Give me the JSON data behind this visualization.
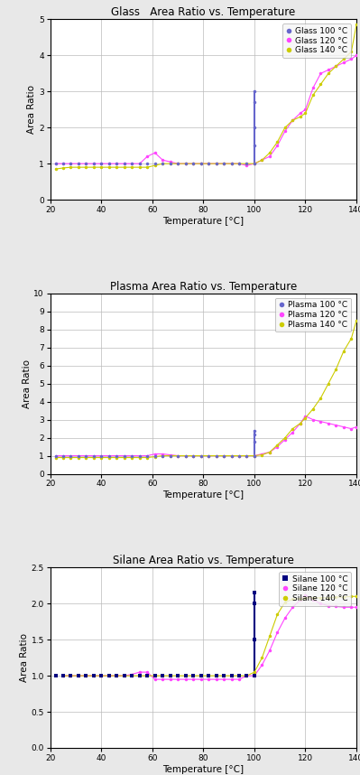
{
  "charts": [
    {
      "title": "Glass   Area Ratio vs. Temperature",
      "xlabel": "Temperature [°C]",
      "ylabel": "Area Ratio",
      "ylim": [
        0,
        5
      ],
      "yticks": [
        0,
        1,
        2,
        3,
        4,
        5
      ],
      "xlim": [
        20,
        140
      ],
      "xticks": [
        20,
        40,
        60,
        80,
        100,
        120,
        140
      ],
      "series": [
        {
          "label": "Glass 100 °C",
          "color": "#6666cc",
          "marker": "o",
          "markersize": 2.5,
          "x": [
            22,
            25,
            28,
            31,
            34,
            37,
            40,
            43,
            46,
            49,
            52,
            55,
            58,
            61,
            64,
            67,
            70,
            73,
            76,
            79,
            82,
            85,
            88,
            91,
            94,
            97,
            100,
            100,
            100,
            100,
            100
          ],
          "y": [
            1.0,
            1.0,
            1.0,
            1.0,
            1.0,
            1.0,
            1.0,
            1.0,
            1.0,
            1.0,
            1.0,
            1.0,
            1.0,
            1.0,
            1.0,
            1.0,
            1.0,
            1.0,
            1.0,
            1.0,
            1.0,
            1.0,
            1.0,
            1.0,
            1.0,
            1.0,
            1.0,
            1.5,
            2.0,
            2.7,
            3.0
          ],
          "linestyle": "none",
          "vline_x": 100,
          "vline_y": [
            1.0,
            3.0
          ]
        },
        {
          "label": "Glass 120 °C",
          "color": "#ff44ff",
          "marker": "o",
          "markersize": 2.5,
          "x": [
            22,
            25,
            28,
            31,
            34,
            37,
            40,
            43,
            46,
            49,
            52,
            55,
            58,
            61,
            64,
            67,
            70,
            73,
            76,
            79,
            82,
            85,
            88,
            91,
            94,
            97,
            100,
            103,
            106,
            109,
            112,
            115,
            118,
            120,
            123,
            126,
            129,
            132,
            135,
            138,
            140
          ],
          "y": [
            1.0,
            1.0,
            1.0,
            1.0,
            1.0,
            1.0,
            1.0,
            1.0,
            1.0,
            1.0,
            1.0,
            1.0,
            1.2,
            1.3,
            1.1,
            1.05,
            1.0,
            1.0,
            1.0,
            1.0,
            1.0,
            1.0,
            1.0,
            1.0,
            1.0,
            0.95,
            1.0,
            1.1,
            1.2,
            1.5,
            1.9,
            2.2,
            2.4,
            2.5,
            3.1,
            3.5,
            3.6,
            3.7,
            3.8,
            3.9,
            4.0
          ],
          "linestyle": "-"
        },
        {
          "label": "Glass 140 °C",
          "color": "#cccc00",
          "marker": "o",
          "markersize": 2.5,
          "x": [
            22,
            25,
            28,
            31,
            34,
            37,
            40,
            43,
            46,
            49,
            52,
            55,
            58,
            61,
            64,
            67,
            70,
            73,
            76,
            79,
            82,
            85,
            88,
            91,
            94,
            97,
            100,
            103,
            106,
            109,
            112,
            115,
            118,
            120,
            123,
            126,
            129,
            132,
            135,
            138,
            140
          ],
          "y": [
            0.85,
            0.88,
            0.9,
            0.9,
            0.9,
            0.9,
            0.9,
            0.9,
            0.9,
            0.9,
            0.9,
            0.9,
            0.9,
            0.95,
            1.0,
            1.0,
            1.0,
            1.0,
            1.0,
            1.0,
            1.0,
            1.0,
            1.0,
            1.0,
            1.0,
            1.0,
            1.0,
            1.1,
            1.3,
            1.6,
            2.0,
            2.2,
            2.3,
            2.4,
            2.9,
            3.2,
            3.5,
            3.7,
            3.9,
            4.1,
            4.85
          ],
          "linestyle": "-"
        }
      ],
      "legend_entries": [
        "Glass 100 °C",
        "Glass 120 °C",
        "Glass 140 °C"
      ],
      "legend_colors": [
        "#6666cc",
        "#ff44ff",
        "#cccc00"
      ],
      "legend_markers": [
        "o",
        "o",
        "o"
      ]
    },
    {
      "title": "Plasma Area Ratio vs. Temperature",
      "xlabel": "Temperature [°C]",
      "ylabel": "Area Ratio",
      "ylim": [
        0,
        10
      ],
      "yticks": [
        0,
        1,
        2,
        3,
        4,
        5,
        6,
        7,
        8,
        9,
        10
      ],
      "xlim": [
        20,
        140
      ],
      "xticks": [
        20,
        40,
        60,
        80,
        100,
        120,
        140
      ],
      "series": [
        {
          "label": "Plasma 100 °C",
          "color": "#6666cc",
          "marker": "o",
          "markersize": 2.5,
          "x": [
            22,
            25,
            28,
            31,
            34,
            37,
            40,
            43,
            46,
            49,
            52,
            55,
            58,
            61,
            64,
            67,
            70,
            73,
            76,
            79,
            82,
            85,
            88,
            91,
            94,
            97,
            100,
            100,
            100,
            100
          ],
          "y": [
            1.0,
            1.0,
            1.0,
            1.0,
            1.0,
            1.0,
            1.0,
            1.0,
            1.0,
            1.0,
            1.0,
            1.0,
            1.0,
            1.0,
            1.0,
            1.0,
            1.0,
            1.0,
            1.0,
            1.0,
            1.0,
            1.0,
            1.0,
            1.0,
            1.0,
            1.0,
            1.0,
            1.8,
            2.2,
            2.4
          ],
          "linestyle": "none",
          "vline_x": 100,
          "vline_y": [
            1.0,
            2.4
          ]
        },
        {
          "label": "Plasma 120 °C",
          "color": "#ff44ff",
          "marker": "o",
          "markersize": 2.5,
          "x": [
            22,
            25,
            28,
            31,
            34,
            37,
            40,
            43,
            46,
            49,
            52,
            55,
            58,
            61,
            64,
            67,
            70,
            73,
            76,
            79,
            82,
            85,
            88,
            91,
            94,
            97,
            100,
            103,
            106,
            109,
            112,
            115,
            118,
            120,
            123,
            126,
            129,
            132,
            135,
            138,
            140
          ],
          "y": [
            1.0,
            1.0,
            1.0,
            1.0,
            1.0,
            1.0,
            1.0,
            1.0,
            1.0,
            1.0,
            1.0,
            1.0,
            1.0,
            1.1,
            1.1,
            1.05,
            1.0,
            1.0,
            1.0,
            1.0,
            1.0,
            1.0,
            1.0,
            1.0,
            1.0,
            1.0,
            1.0,
            1.1,
            1.2,
            1.5,
            1.9,
            2.3,
            2.8,
            3.2,
            3.0,
            2.9,
            2.8,
            2.7,
            2.6,
            2.5,
            2.6
          ],
          "linestyle": "-"
        },
        {
          "label": "Plasma 140 °C",
          "color": "#cccc00",
          "marker": "o",
          "markersize": 2.5,
          "x": [
            22,
            25,
            28,
            31,
            34,
            37,
            40,
            43,
            46,
            49,
            52,
            55,
            58,
            61,
            64,
            67,
            70,
            73,
            76,
            79,
            82,
            85,
            88,
            91,
            94,
            97,
            100,
            103,
            106,
            109,
            112,
            115,
            118,
            120,
            123,
            126,
            129,
            132,
            135,
            138,
            140
          ],
          "y": [
            0.9,
            0.9,
            0.9,
            0.9,
            0.9,
            0.9,
            0.9,
            0.9,
            0.9,
            0.9,
            0.9,
            0.9,
            0.9,
            0.95,
            1.0,
            1.0,
            1.0,
            1.0,
            1.0,
            1.0,
            1.0,
            1.0,
            1.0,
            1.0,
            1.0,
            1.0,
            1.0,
            1.05,
            1.2,
            1.6,
            2.0,
            2.5,
            2.8,
            3.1,
            3.6,
            4.2,
            5.0,
            5.8,
            6.8,
            7.5,
            8.5
          ],
          "linestyle": "-"
        }
      ],
      "legend_entries": [
        "Plasma 100 °C",
        "Plasma 120 °C",
        "Plasma 140 °C"
      ],
      "legend_colors": [
        "#6666cc",
        "#ff44ff",
        "#cccc00"
      ],
      "legend_markers": [
        "o",
        "o",
        "o"
      ]
    },
    {
      "title": "Silane Area Ratio vs. Temperature",
      "xlabel": "Temperature [°C]",
      "ylabel": "Area Ratio",
      "ylim": [
        0,
        2.5
      ],
      "yticks": [
        0,
        0.5,
        1.0,
        1.5,
        2.0,
        2.5
      ],
      "xlim": [
        20,
        140
      ],
      "xticks": [
        20,
        40,
        60,
        80,
        100,
        120,
        140
      ],
      "series": [
        {
          "label": "Silane 100 °C",
          "color": "#000080",
          "marker": "s",
          "markersize": 2.5,
          "x": [
            22,
            25,
            28,
            31,
            34,
            37,
            40,
            43,
            46,
            49,
            52,
            55,
            58,
            61,
            64,
            67,
            70,
            73,
            76,
            79,
            82,
            85,
            88,
            91,
            94,
            97,
            100,
            100,
            100,
            100,
            100
          ],
          "y": [
            1.0,
            1.0,
            1.0,
            1.0,
            1.0,
            1.0,
            1.0,
            1.0,
            1.0,
            1.0,
            1.0,
            1.0,
            1.0,
            1.0,
            1.0,
            1.0,
            1.0,
            1.0,
            1.0,
            1.0,
            1.0,
            1.0,
            1.0,
            1.0,
            1.0,
            1.0,
            1.0,
            1.5,
            2.0,
            2.15,
            2.15
          ],
          "linestyle": "none",
          "vline_x": 100,
          "vline_y": [
            1.0,
            2.15
          ]
        },
        {
          "label": "Silane 120 °C",
          "color": "#ff44ff",
          "marker": "o",
          "markersize": 2.5,
          "x": [
            25,
            28,
            31,
            34,
            37,
            40,
            43,
            46,
            49,
            52,
            55,
            58,
            61,
            64,
            67,
            70,
            73,
            76,
            79,
            82,
            85,
            88,
            91,
            94,
            97,
            100,
            103,
            106,
            109,
            112,
            115,
            118,
            120,
            123,
            126,
            129,
            132,
            135,
            138,
            140
          ],
          "y": [
            1.0,
            1.0,
            1.0,
            1.0,
            1.0,
            1.0,
            1.0,
            1.0,
            1.0,
            1.02,
            1.05,
            1.05,
            0.95,
            0.95,
            0.95,
            0.95,
            0.95,
            0.95,
            0.95,
            0.95,
            0.95,
            0.95,
            0.95,
            0.95,
            1.0,
            1.0,
            1.15,
            1.35,
            1.6,
            1.8,
            1.95,
            2.05,
            2.12,
            2.05,
            2.0,
            1.97,
            1.96,
            1.95,
            1.95,
            1.95
          ],
          "linestyle": "-"
        },
        {
          "label": "Silane 140 °C",
          "color": "#cccc00",
          "marker": "o",
          "markersize": 2.5,
          "x": [
            25,
            28,
            31,
            34,
            37,
            40,
            43,
            46,
            49,
            52,
            55,
            58,
            61,
            64,
            67,
            70,
            73,
            76,
            79,
            82,
            85,
            88,
            91,
            94,
            97,
            100,
            103,
            106,
            109,
            112,
            115,
            118,
            120,
            123,
            126,
            129,
            132,
            135,
            138,
            140
          ],
          "y": [
            1.0,
            1.0,
            1.0,
            1.0,
            1.0,
            1.0,
            1.0,
            1.0,
            1.0,
            1.0,
            1.0,
            1.0,
            1.0,
            1.0,
            1.0,
            1.0,
            1.0,
            1.0,
            1.0,
            1.0,
            1.0,
            1.0,
            1.0,
            1.0,
            1.0,
            1.05,
            1.25,
            1.55,
            1.85,
            2.02,
            2.06,
            2.07,
            2.08,
            2.08,
            2.08,
            2.08,
            2.09,
            2.09,
            2.1,
            2.1
          ],
          "linestyle": "-"
        }
      ],
      "legend_entries": [
        "Silane 100 °C",
        "Silane 120 °C",
        "Silane 140 °C"
      ],
      "legend_colors": [
        "#000080",
        "#ff44ff",
        "#cccc00"
      ],
      "legend_markers": [
        "s",
        "o",
        "o"
      ]
    }
  ],
  "figure_bg": "#e8e8e8",
  "plot_bg": "#ffffff",
  "legend_fontsize": 6.5,
  "axis_label_fontsize": 7.5,
  "tick_fontsize": 6.5,
  "title_fontsize": 8.5
}
